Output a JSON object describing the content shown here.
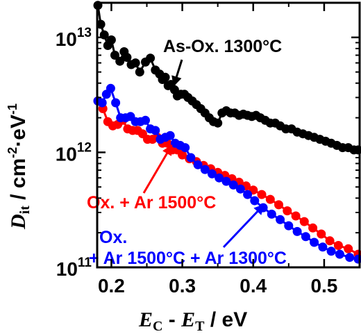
{
  "chart_data": {
    "type": "scatter",
    "title": "",
    "xlabel": {
      "main": "E",
      "sub1": "C",
      "mid": " - ",
      "main2": "E",
      "sub2": "T",
      "unit": " / eV"
    },
    "ylabel": {
      "main": "D",
      "sub": "it",
      "unit_pre": " / cm",
      "exp1": "-2",
      "dot": "·eV",
      "exp2": "-1"
    },
    "x_scale": "linear",
    "y_scale": "log",
    "xlim": [
      0.18,
      0.55
    ],
    "ylim": [
      100000000000.0,
      20000000000000.0
    ],
    "x_ticks": [
      {
        "value": 0.2,
        "label": "0.2"
      },
      {
        "value": 0.3,
        "label": "0.3"
      },
      {
        "value": 0.4,
        "label": "0.4"
      },
      {
        "value": 0.5,
        "label": "0.5"
      }
    ],
    "y_ticks": [
      {
        "value": 100000000000.0,
        "base": "10",
        "exp": "11"
      },
      {
        "value": 1000000000000.0,
        "base": "10",
        "exp": "12"
      },
      {
        "value": 10000000000000.0,
        "base": "10",
        "exp": "13"
      }
    ],
    "grid": false,
    "series": [
      {
        "name": "As-Ox. 1300°C",
        "color": "#000000",
        "x": [
          0.181,
          0.185,
          0.19,
          0.195,
          0.2,
          0.205,
          0.212,
          0.218,
          0.222,
          0.228,
          0.234,
          0.24,
          0.248,
          0.255,
          0.262,
          0.268,
          0.272,
          0.276,
          0.28,
          0.284,
          0.289,
          0.293,
          0.298,
          0.303,
          0.308,
          0.314,
          0.32,
          0.326,
          0.332,
          0.338,
          0.344,
          0.35,
          0.356,
          0.362,
          0.368,
          0.374,
          0.38,
          0.386,
          0.392,
          0.398,
          0.404,
          0.41,
          0.417,
          0.424,
          0.431,
          0.438,
          0.446,
          0.454,
          0.462,
          0.47,
          0.478,
          0.486,
          0.494,
          0.502,
          0.51,
          0.518,
          0.526,
          0.534,
          0.542,
          0.548
        ],
        "y": [
          19000000000000.0,
          13000000000000.0,
          10500000000000.0,
          8500000000000.0,
          9500000000000.0,
          7000000000000.0,
          6200000000000.0,
          7500000000000.0,
          6700000000000.0,
          5800000000000.0,
          6000000000000.0,
          5000000000000.0,
          6100000000000.0,
          6600000000000.0,
          5200000000000.0,
          4800000000000.0,
          4300000000000.0,
          4500000000000.0,
          3800000000000.0,
          3900000000000.0,
          3500000000000.0,
          3100000000000.0,
          3200000000000.0,
          3200000000000.0,
          3000000000000.0,
          2800000000000.0,
          2600000000000.0,
          2400000000000.0,
          2200000000000.0,
          2000000000000.0,
          1850000000000.0,
          1800000000000.0,
          2200000000000.0,
          2300000000000.0,
          2200000000000.0,
          2200000000000.0,
          2100000000000.0,
          2150000000000.0,
          2100000000000.0,
          2050000000000.0,
          2100000000000.0,
          2000000000000.0,
          1900000000000.0,
          1800000000000.0,
          1800000000000.0,
          1700000000000.0,
          1600000000000.0,
          1600000000000.0,
          1500000000000.0,
          1450000000000.0,
          1400000000000.0,
          1350000000000.0,
          1300000000000.0,
          1250000000000.0,
          1200000000000.0,
          1150000000000.0,
          1100000000000.0,
          1100000000000.0,
          1050000000000.0,
          1050000000000.0
        ]
      },
      {
        "name": "Ox. + Ar 1500°C",
        "color": "#ff0000",
        "x": [
          0.181,
          0.188,
          0.195,
          0.202,
          0.209,
          0.216,
          0.223,
          0.23,
          0.237,
          0.244,
          0.251,
          0.258,
          0.265,
          0.272,
          0.279,
          0.286,
          0.293,
          0.3,
          0.31,
          0.32,
          0.33,
          0.34,
          0.35,
          0.36,
          0.37,
          0.38,
          0.39,
          0.4,
          0.412,
          0.424,
          0.436,
          0.448,
          0.46,
          0.472,
          0.484,
          0.496,
          0.508,
          0.52,
          0.534,
          0.548
        ],
        "y": [
          2800000000000.0,
          2400000000000.0,
          1850000000000.0,
          1700000000000.0,
          1750000000000.0,
          1900000000000.0,
          1600000000000.0,
          1550000000000.0,
          1550000000000.0,
          1450000000000.0,
          1300000000000.0,
          1300000000000.0,
          1350000000000.0,
          1200000000000.0,
          1200000000000.0,
          1050000000000.0,
          1050000000000.0,
          950000000000.0,
          880000000000.0,
          830000000000.0,
          770000000000.0,
          720000000000.0,
          670000000000.0,
          630000000000.0,
          590000000000.0,
          550000000000.0,
          510000000000.0,
          470000000000.0,
          430000000000.0,
          390000000000.0,
          350000000000.0,
          310000000000.0,
          280000000000.0,
          250000000000.0,
          220000000000.0,
          195000000000.0,
          170000000000.0,
          155000000000.0,
          145000000000.0,
          130000000000.0
        ]
      },
      {
        "name": "Ox. + Ar 1500°C + Ar 1300°C",
        "color": "#0000ff",
        "x": [
          0.181,
          0.187,
          0.193,
          0.199,
          0.206,
          0.213,
          0.22,
          0.227,
          0.234,
          0.241,
          0.248,
          0.255,
          0.262,
          0.269,
          0.276,
          0.283,
          0.29,
          0.297,
          0.304,
          0.312,
          0.322,
          0.332,
          0.342,
          0.352,
          0.362,
          0.372,
          0.382,
          0.392,
          0.402,
          0.414,
          0.426,
          0.438,
          0.45,
          0.462,
          0.474,
          0.486,
          0.498,
          0.51,
          0.522,
          0.536,
          0.548
        ],
        "y": [
          2800000000000.0,
          2700000000000.0,
          3200000000000.0,
          3600000000000.0,
          2700000000000.0,
          2000000000000.0,
          2000000000000.0,
          2050000000000.0,
          1850000000000.0,
          1850000000000.0,
          1900000000000.0,
          1600000000000.0,
          1550000000000.0,
          1300000000000.0,
          1350000000000.0,
          1400000000000.0,
          1200000000000.0,
          1150000000000.0,
          1100000000000.0,
          900000000000.0,
          780000000000.0,
          710000000000.0,
          650000000000.0,
          600000000000.0,
          560000000000.0,
          520000000000.0,
          480000000000.0,
          430000000000.0,
          380000000000.0,
          330000000000.0,
          290000000000.0,
          260000000000.0,
          230000000000.0,
          205000000000.0,
          185000000000.0,
          165000000000.0,
          150000000000.0,
          138000000000.0,
          130000000000.0,
          122000000000.0,
          118000000000.0
        ]
      }
    ],
    "annotations": [
      {
        "text": "As-Ox. 1300°C",
        "color": "#000000",
        "arrow_to": {
          "x": 0.288,
          "y": 3800000000000.0
        }
      },
      {
        "text": "Ox. + Ar 1500°C",
        "color": "#ff0000",
        "arrow_to": {
          "x": 0.285,
          "y": 1150000000000.0
        }
      },
      {
        "lines": [
          "Ox.",
          "+ Ar 1500°C + Ar 1300°C"
        ],
        "color": "#0000ff",
        "arrow_to": {
          "x": 0.415,
          "y": 350000000000.0
        }
      }
    ]
  }
}
